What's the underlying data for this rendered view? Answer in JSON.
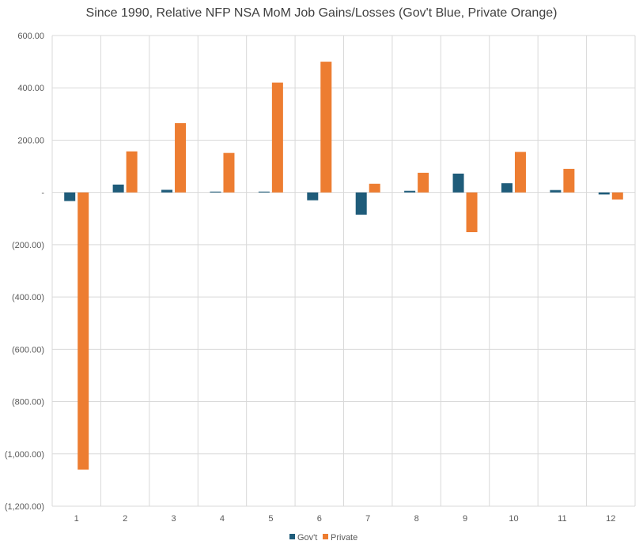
{
  "chart_data": {
    "type": "bar",
    "title": "Since 1990, Relative NFP NSA MoM Job Gains/Losses (Gov't Blue, Private Orange)",
    "categories": [
      "1",
      "2",
      "3",
      "4",
      "5",
      "6",
      "7",
      "8",
      "9",
      "10",
      "11",
      "12"
    ],
    "series": [
      {
        "name": "Gov't",
        "color": "#1F5C7A",
        "values": [
          -33,
          30,
          10,
          3,
          3,
          -30,
          -85,
          6,
          72,
          35,
          9,
          -8
        ]
      },
      {
        "name": "Private",
        "color": "#ED7D31",
        "values": [
          -1060,
          157,
          265,
          151,
          420,
          500,
          33,
          75,
          -152,
          155,
          90,
          -27
        ]
      }
    ],
    "ylim": [
      -1200,
      600
    ],
    "yticks": [
      600,
      400,
      200,
      0,
      -200,
      -400,
      -600,
      -800,
      -1000,
      -1200
    ],
    "ytick_labels": [
      "600.00",
      "400.00",
      "200.00",
      "-",
      "(200.00)",
      "(400.00)",
      "(600.00)",
      "(800.00)",
      "(1,000.00)",
      "(1,200.00)"
    ],
    "grid": true,
    "legend_position": "bottom"
  }
}
